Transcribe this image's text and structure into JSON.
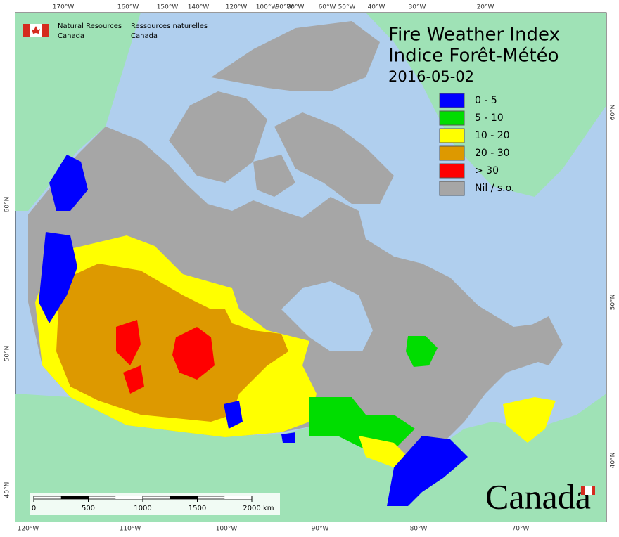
{
  "header": {
    "org_en": [
      "Natural Resources",
      "Canada"
    ],
    "org_fr": [
      "Ressources naturelles",
      "Canada"
    ]
  },
  "title": [
    "Fire Weather Index",
    "Indice Forêt-Météo"
  ],
  "date": "2016-05-02",
  "legend": [
    {
      "label": "0 - 5",
      "color": "#0000ff"
    },
    {
      "label": "5 - 10",
      "color": "#00dd00"
    },
    {
      "label": "10 - 20",
      "color": "#ffff00"
    },
    {
      "label": "20 - 30",
      "color": "#dd9900"
    },
    {
      "label": "> 30",
      "color": "#ff0000"
    },
    {
      "label": "Nil / s.o.",
      "color": "#a6a6a6"
    }
  ],
  "top_labels": [
    "170°W",
    "160°W",
    "150°W",
    "140°W",
    "120°W",
    "100°W",
    "90°W",
    "80°W",
    "60°W",
    "50°W",
    "40°W",
    "30°W",
    "20°W"
  ],
  "bottom_labels": [
    "120°W",
    "110°W",
    "100°W",
    "90°W",
    "80°W",
    "70°W"
  ],
  "left_labels": [
    "60°N",
    "50°N",
    "40°N"
  ],
  "right_labels": [
    "60°N",
    "50°N",
    "40°N"
  ],
  "scale_bar": {
    "ticks": [
      0,
      500,
      1000,
      1500,
      2000
    ],
    "unit": "km"
  },
  "wordmark": "Canada"
}
